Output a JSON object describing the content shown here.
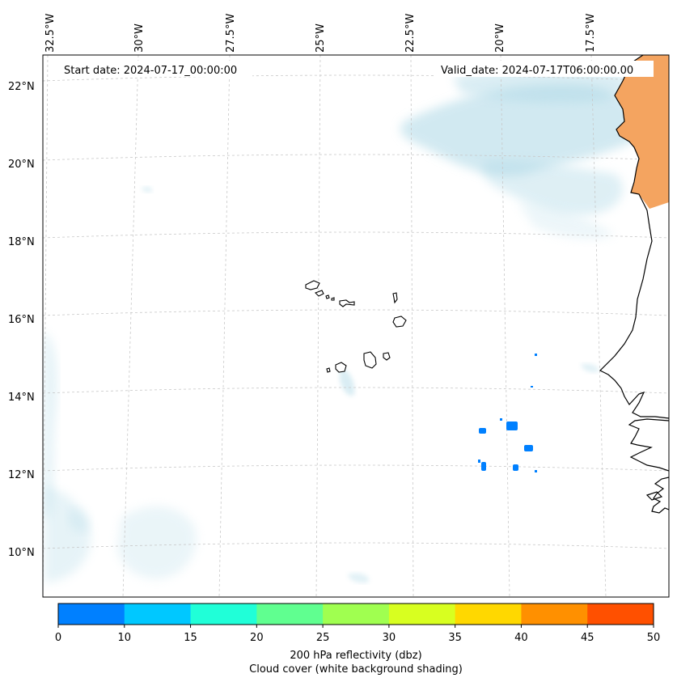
{
  "map": {
    "start_date": "Start date: 2024-07-17_00:00:00",
    "valid_date": "Valid_date: 2024-07-17T06:00:00.00",
    "lon_labels": [
      "32.5°W",
      "30°W",
      "27.5°W",
      "25°W",
      "22.5°W",
      "20°W",
      "17.5°W"
    ],
    "lat_labels": [
      "22°N",
      "20°N",
      "18°N",
      "16°N",
      "14°N",
      "12°N",
      "10°N"
    ]
  },
  "colorbar": {
    "ticks": [
      "0",
      "10",
      "15",
      "20",
      "25",
      "30",
      "35",
      "40",
      "45",
      "50"
    ],
    "colors": [
      "#0080ff",
      "#00c8ff",
      "#20ffd8",
      "#60ff90",
      "#a0ff50",
      "#d8ff20",
      "#ffd800",
      "#ff9000",
      "#ff5000"
    ],
    "label_line1": "200 hPa reflectivity (dbz)",
    "label_line2": "Cloud cover (white background shading)"
  },
  "colors": {
    "land_top": "#f4a460",
    "cloud": "#add8e6",
    "reflectivity_low": "#0080ff"
  }
}
